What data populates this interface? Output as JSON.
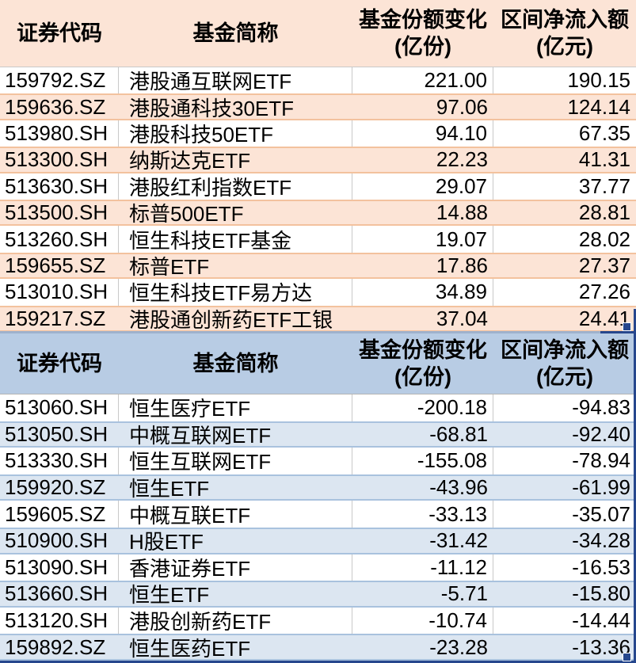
{
  "inflow": {
    "headers": {
      "code": "证券代码",
      "name": "基金简称",
      "share_change_line1": "基金份额变化",
      "share_change_line2": "(亿份)",
      "net_flow_line1": "区间净流入额",
      "net_flow_line2": "(亿元)"
    },
    "rows": [
      {
        "code": "159792.SZ",
        "name": "港股通互联网ETF",
        "share_change": "221.00",
        "net_flow": "190.15"
      },
      {
        "code": "159636.SZ",
        "name": "港股通科技30ETF",
        "share_change": "97.06",
        "net_flow": "124.14"
      },
      {
        "code": "513980.SH",
        "name": "港股科技50ETF",
        "share_change": "94.10",
        "net_flow": "67.35"
      },
      {
        "code": "513300.SH",
        "name": "纳斯达克ETF",
        "share_change": "22.23",
        "net_flow": "41.31"
      },
      {
        "code": "513630.SH",
        "name": "港股红利指数ETF",
        "share_change": "29.07",
        "net_flow": "37.77"
      },
      {
        "code": "513500.SH",
        "name": "标普500ETF",
        "share_change": "14.88",
        "net_flow": "28.81"
      },
      {
        "code": "513260.SH",
        "name": "恒生科技ETF基金",
        "share_change": "19.07",
        "net_flow": "28.02"
      },
      {
        "code": "159655.SZ",
        "name": "标普ETF",
        "share_change": "17.86",
        "net_flow": "27.37"
      },
      {
        "code": "513010.SH",
        "name": "恒生科技ETF易方达",
        "share_change": "34.89",
        "net_flow": "27.26"
      },
      {
        "code": "159217.SZ",
        "name": "港股通创新药ETF工银",
        "share_change": "37.04",
        "net_flow": "24.41"
      }
    ]
  },
  "outflow": {
    "headers": {
      "code": "证券代码",
      "name": "基金简称",
      "share_change_line1": "基金份额变化",
      "share_change_line2": "(亿份)",
      "net_flow_line1": "区间净流入额",
      "net_flow_line2": "(亿元)"
    },
    "rows": [
      {
        "code": "513060.SH",
        "name": "恒生医疗ETF",
        "share_change": "-200.18",
        "net_flow": "-94.83"
      },
      {
        "code": "513050.SH",
        "name": "中概互联网ETF",
        "share_change": "-68.81",
        "net_flow": "-92.40"
      },
      {
        "code": "513330.SH",
        "name": "恒生互联网ETF",
        "share_change": "-155.08",
        "net_flow": "-78.94"
      },
      {
        "code": "159920.SZ",
        "name": "恒生ETF",
        "share_change": "-43.96",
        "net_flow": "-61.99"
      },
      {
        "code": "159605.SZ",
        "name": "中概互联ETF",
        "share_change": "-33.13",
        "net_flow": "-35.07"
      },
      {
        "code": "510900.SH",
        "name": "H股ETF",
        "share_change": "-31.42",
        "net_flow": "-34.28"
      },
      {
        "code": "513090.SH",
        "name": "香港证券ETF",
        "share_change": "-11.12",
        "net_flow": "-16.53"
      },
      {
        "code": "513660.SH",
        "name": "恒生ETF",
        "share_change": "-5.71",
        "net_flow": "-15.80"
      },
      {
        "code": "513120.SH",
        "name": "港股创新药ETF",
        "share_change": "-10.74",
        "net_flow": "-14.44"
      },
      {
        "code": "159892.SZ",
        "name": "恒生医药ETF",
        "share_change": "-23.28",
        "net_flow": "-13.36"
      }
    ]
  },
  "colors": {
    "inflow_header_bg": "#fce4d6",
    "inflow_row_bg": "#fce4d6",
    "inflow_row_border": "#f3c29e",
    "outflow_header_bg": "#b8cce4",
    "outflow_row_bg": "#dce6f1",
    "outflow_row_border": "#a9c2de",
    "gridline": "#c9c9c9",
    "selection_border": "#26478d",
    "text": "#000000"
  }
}
